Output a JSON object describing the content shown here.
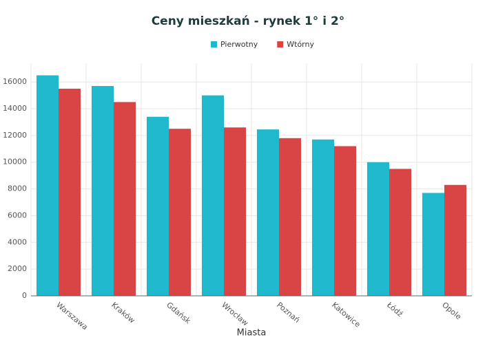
{
  "chart_data": {
    "type": "bar",
    "title": "Ceny mieszkań - rynek 1° i 2°",
    "x_label": "Miasta",
    "categories": [
      "Warszawa",
      "Kraków",
      "Gdańsk",
      "Wrocław",
      "Poznań",
      "Katowice",
      "Łódź",
      "Opole"
    ],
    "series": [
      {
        "name": "Pierwotny",
        "color": "#1fb8cc",
        "values": [
          16500,
          15700,
          13400,
          15000,
          12450,
          11700,
          10000,
          7700
        ]
      },
      {
        "name": "Wtórny",
        "color": "#d94545",
        "values": [
          15500,
          14500,
          12500,
          12600,
          11800,
          11200,
          9500,
          8300
        ]
      }
    ],
    "ylim": [
      0,
      17400
    ],
    "yticks": [
      0,
      2000,
      4000,
      6000,
      8000,
      10000,
      12000,
      14000,
      16000
    ],
    "grid": true,
    "legend": "top"
  }
}
